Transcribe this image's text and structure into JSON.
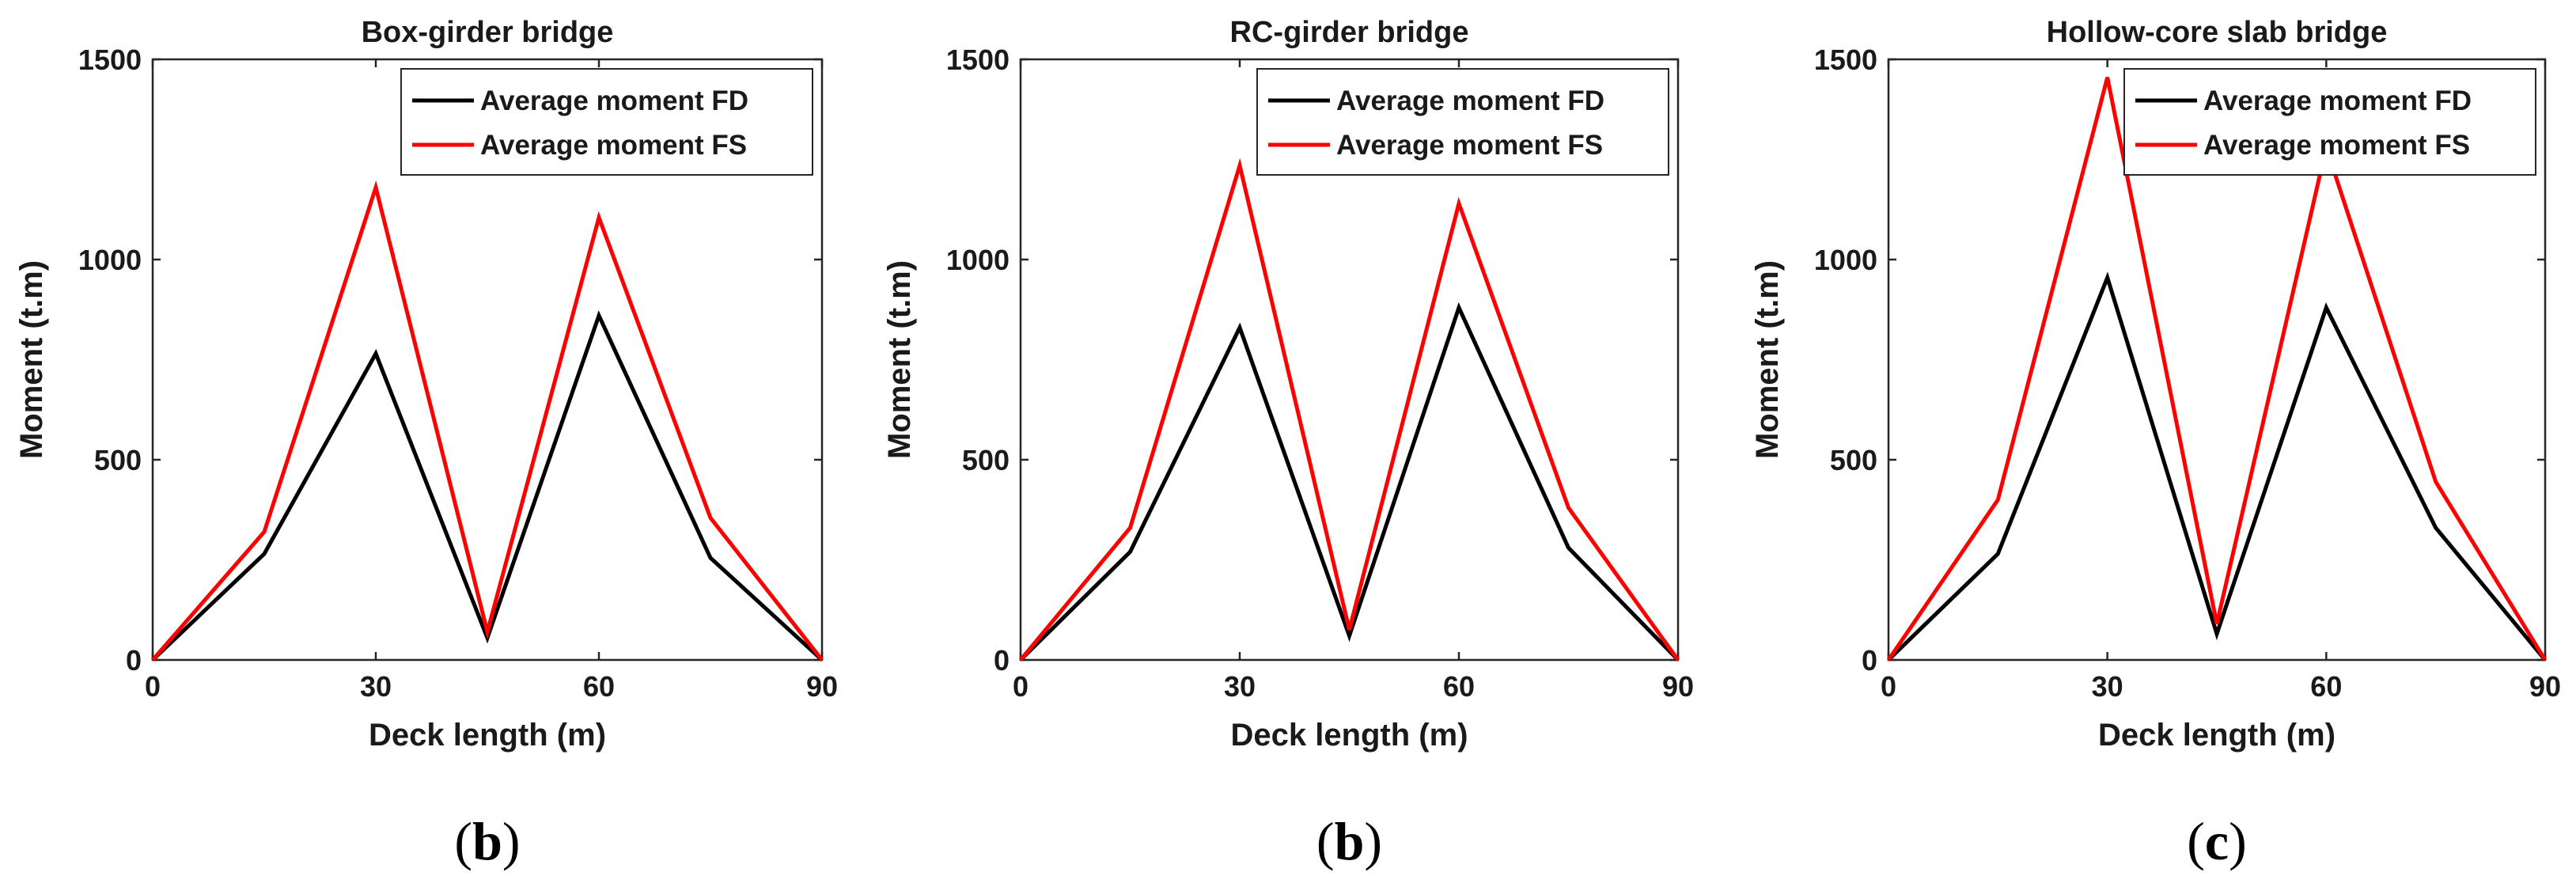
{
  "colors": {
    "fd": "#000000",
    "fs": "#ff0000",
    "axis": "#262626",
    "text": "#1a1a1a"
  },
  "chart_data": [
    {
      "type": "line",
      "panel_label": "b",
      "title": "Box-girder bridge",
      "xlabel": "Deck length (m)",
      "ylabel": "Moment (t.m)",
      "xlim": [
        0,
        90
      ],
      "ylim": [
        0,
        1500
      ],
      "xticks": [
        0,
        30,
        60,
        90
      ],
      "yticks": [
        0,
        500,
        1000,
        1500
      ],
      "grid": false,
      "legend": "top-right",
      "x": [
        0,
        15,
        30,
        45,
        60,
        75,
        90
      ],
      "series": [
        {
          "name": "Average moment FD",
          "color": "#000000",
          "values": [
            0,
            265,
            765,
            55,
            860,
            255,
            0
          ]
        },
        {
          "name": "Average moment FS",
          "color": "#ff0000",
          "values": [
            0,
            320,
            1180,
            70,
            1105,
            355,
            0
          ]
        }
      ]
    },
    {
      "type": "line",
      "panel_label": "b",
      "title": "RC-girder bridge",
      "xlabel": "Deck length (m)",
      "ylabel": "Moment (t.m)",
      "xlim": [
        0,
        90
      ],
      "ylim": [
        0,
        1500
      ],
      "xticks": [
        0,
        30,
        60,
        90
      ],
      "yticks": [
        0,
        500,
        1000,
        1500
      ],
      "grid": false,
      "legend": "top-right",
      "x": [
        0,
        15,
        30,
        45,
        60,
        75,
        90
      ],
      "series": [
        {
          "name": "Average moment FD",
          "color": "#000000",
          "values": [
            0,
            270,
            830,
            60,
            880,
            280,
            0
          ]
        },
        {
          "name": "Average moment FS",
          "color": "#ff0000",
          "values": [
            0,
            330,
            1235,
            75,
            1140,
            380,
            0
          ]
        }
      ]
    },
    {
      "type": "line",
      "panel_label": "c",
      "title": "Hollow-core slab bridge",
      "xlabel": "Deck length (m)",
      "ylabel": "Moment (t.m)",
      "xlim": [
        0,
        90
      ],
      "ylim": [
        0,
        1500
      ],
      "xticks": [
        0,
        30,
        60,
        90
      ],
      "yticks": [
        0,
        500,
        1000,
        1500
      ],
      "grid": false,
      "legend": "top-right",
      "x": [
        0,
        15,
        30,
        45,
        60,
        75,
        90
      ],
      "series": [
        {
          "name": "Average moment FD",
          "color": "#000000",
          "values": [
            0,
            265,
            955,
            65,
            880,
            330,
            0
          ]
        },
        {
          "name": "Average moment FS",
          "color": "#ff0000",
          "values": [
            0,
            400,
            1455,
            90,
            1280,
            445,
            0
          ]
        }
      ]
    }
  ]
}
